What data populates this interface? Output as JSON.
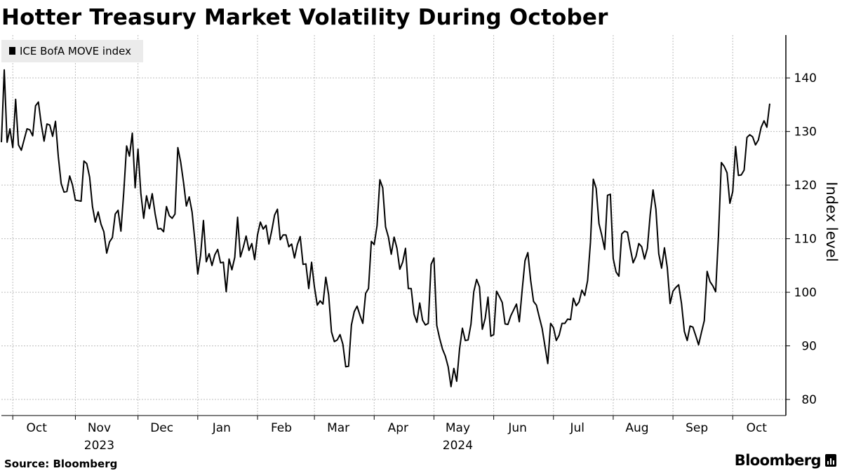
{
  "title": "Hotter Treasury Market Volatility During October",
  "source": "Source:  Bloomberg",
  "brand": "Bloomberg",
  "chart_data": {
    "type": "line",
    "title": "Hotter Treasury Market Volatility During October",
    "ylabel": "Index level",
    "xlabel": "",
    "ylim": [
      77,
      148
    ],
    "yticks": [
      80,
      90,
      100,
      110,
      120,
      130,
      140
    ],
    "grid": true,
    "legend": "top-left",
    "line_color": "#000000",
    "months": [
      {
        "label": "Oct",
        "pos": 4
      },
      {
        "label": "Nov",
        "pos": 26
      },
      {
        "label": "Dec",
        "pos": 48
      },
      {
        "label": "Jan",
        "pos": 69
      },
      {
        "label": "Feb",
        "pos": 90
      },
      {
        "label": "Mar",
        "pos": 110
      },
      {
        "label": "Apr",
        "pos": 131
      },
      {
        "label": "May",
        "pos": 152
      },
      {
        "label": "Jun",
        "pos": 173
      },
      {
        "label": "Jul",
        "pos": 194
      },
      {
        "label": "Aug",
        "pos": 215
      },
      {
        "label": "Sep",
        "pos": 236
      },
      {
        "label": "Oct",
        "pos": 257
      }
    ],
    "years": [
      {
        "label": "2023",
        "pos": 26
      },
      {
        "label": "2024",
        "pos": 152
      }
    ],
    "series": [
      {
        "name": "ICE BofA MOVE index",
        "values": [
          128,
          141.5,
          128,
          130.5,
          127,
          136,
          127.5,
          126.5,
          128.5,
          130.5,
          130.3,
          129.2,
          134.8,
          135.5,
          131.4,
          128.2,
          131.4,
          131.2,
          129.1,
          131.9,
          125.3,
          120.3,
          118.7,
          118.8,
          121.7,
          120,
          117.2,
          117.1,
          117,
          124.5,
          124,
          121.5,
          116,
          113.1,
          115,
          112.7,
          111.3,
          107.3,
          109.4,
          110.2,
          114.6,
          115.3,
          111.4,
          118.7,
          127.3,
          125.4,
          129.7,
          119.5,
          126.7,
          118.5,
          113.8,
          118,
          115.6,
          118.4,
          114.7,
          111.8,
          111.9,
          111.3,
          116,
          114.3,
          113.8,
          114.6,
          127,
          124.3,
          120.5,
          116.1,
          117.8,
          115,
          109.6,
          103.4,
          106.9,
          113.4,
          105.7,
          107.2,
          105,
          107,
          108,
          105.5,
          105.6,
          100.1,
          106.2,
          104.2,
          106.5,
          114,
          106.6,
          108.4,
          110.5,
          107.8,
          109.1,
          106.1,
          110.7,
          113.1,
          111.8,
          112.5,
          109,
          111.5,
          114.4,
          115.5,
          109.8,
          110.7,
          110.7,
          108.5,
          109,
          106.4,
          108.9,
          110.4,
          105.2,
          105.3,
          100.7,
          105.6,
          101,
          97.6,
          98.4,
          97.8,
          102.8,
          99.5,
          92.6,
          90.8,
          91.1,
          92.1,
          90.3,
          86.1,
          86.2,
          93.9,
          96.4,
          97.4,
          95.7,
          94.2,
          99.8,
          100.7,
          109.5,
          108.9,
          112.4,
          121,
          119.5,
          112.2,
          110.3,
          107.1,
          110.3,
          108.2,
          104.3,
          105.6,
          108.2,
          100.7,
          100.7,
          95.9,
          94.4,
          98,
          94.8,
          93.9,
          94.2,
          105.2,
          106.4,
          93.8,
          91.4,
          89.4,
          88.1,
          86.1,
          82.4,
          85.8,
          83.4,
          89.4,
          93.3,
          91,
          91.1,
          94,
          100.1,
          102.4,
          101,
          93.1,
          95.1,
          99.1,
          91.8,
          92.1,
          100.2,
          99.2,
          98.1,
          94.1,
          94,
          95.6,
          96.7,
          97.8,
          94.5,
          100.4,
          105.9,
          107.4,
          102.2,
          98.3,
          97.6,
          95.4,
          93.3,
          90,
          86.7,
          94.2,
          93.4,
          91,
          92,
          94.2,
          94.2,
          95,
          94.9,
          98.9,
          97.5,
          98.2,
          100.4,
          99.4,
          102.2,
          109.3,
          121.1,
          119.4,
          112.8,
          110.6,
          108,
          118.1,
          118.3,
          106.3,
          103.8,
          103,
          110.9,
          111.4,
          111.2,
          108.2,
          105.5,
          106.7,
          109.1,
          108.5,
          106.2,
          108.2,
          114.5,
          119.1,
          115.5,
          107.2,
          104.5,
          108.3,
          104.6,
          97.9,
          100.2,
          100.9,
          101.4,
          97.9,
          92.7,
          91,
          93.7,
          93.5,
          91.9,
          90.2,
          92.5,
          94.7,
          103.9,
          102,
          101.2,
          100.1,
          110.7,
          124.2,
          123.5,
          122.3,
          116.6,
          118.8,
          127.2,
          121.8,
          121.9,
          122.8,
          128.9,
          129.4,
          129,
          127.5,
          128.4,
          130.8,
          132,
          130.8,
          135.2
        ]
      }
    ]
  }
}
